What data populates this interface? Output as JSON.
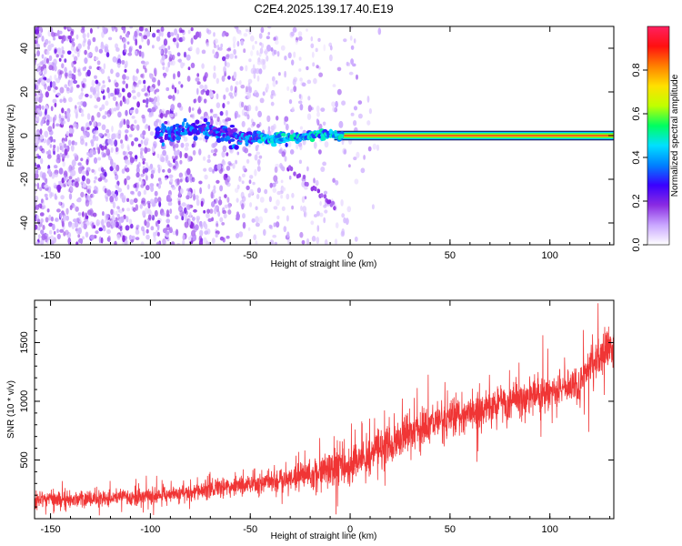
{
  "title": "C2E4.2025.139.17.40.E19",
  "chart_data": [
    {
      "type": "heatmap",
      "xlabel": "Height of straight line (km)",
      "ylabel": "Frequency (Hz)",
      "xlim": [
        -158,
        132
      ],
      "ylim": [
        -50,
        50
      ],
      "xticks": [
        -150,
        -100,
        -50,
        0,
        50,
        100
      ],
      "yticks": [
        -40,
        -20,
        0,
        20,
        40
      ],
      "colorbar": {
        "label": "Normalized spectral amplitude",
        "range": [
          0,
          1
        ],
        "ticks": [
          0.0,
          0.2,
          0.4,
          0.6,
          0.8
        ],
        "colors": [
          "#ffffff",
          "#c9a6ff",
          "#8a2be2",
          "#3a00ff",
          "#0080ff",
          "#00e0ff",
          "#00ff60",
          "#c0ff00",
          "#ffe000",
          "#ff8000",
          "#ff1010",
          "#ff2060"
        ]
      },
      "features": [
        {
          "name": "scatter noise",
          "x_range": [
            -158,
            15
          ],
          "freq_range": [
            -50,
            50
          ],
          "amplitude": 0.05
        },
        {
          "name": "zero-frequency line",
          "x_range": [
            -8,
            132
          ],
          "freq": 0,
          "amplitude": 1.0
        },
        {
          "name": "main trace",
          "points": [
            [
              -95,
              1
            ],
            [
              -80,
              3
            ],
            [
              -70,
              2
            ],
            [
              -60,
              0
            ],
            [
              -50,
              -1
            ],
            [
              -40,
              -1
            ],
            [
              -30,
              -1
            ],
            [
              -20,
              0
            ],
            [
              -10,
              1
            ],
            [
              -5,
              0
            ]
          ],
          "amplitude": 0.35
        },
        {
          "name": "descending branch",
          "points": [
            [
              -30,
              -15
            ],
            [
              -25,
              -18
            ],
            [
              -20,
              -22
            ],
            [
              -10,
              -31
            ],
            [
              -7,
              -33
            ]
          ],
          "amplitude": 0.15
        }
      ]
    },
    {
      "type": "line",
      "xlabel": "Height of straight line (km)",
      "ylabel": "SNR (10 * v/v)",
      "xlim": [
        -158,
        132
      ],
      "ylim": [
        0,
        1860
      ],
      "xticks": [
        -150,
        -100,
        -50,
        0,
        50,
        100
      ],
      "yticks": [
        500,
        1000,
        1500
      ],
      "color": "#f03535",
      "mean_curve": [
        [
          -158,
          160
        ],
        [
          -140,
          165
        ],
        [
          -120,
          170
        ],
        [
          -100,
          190
        ],
        [
          -80,
          230
        ],
        [
          -60,
          270
        ],
        [
          -40,
          320
        ],
        [
          -20,
          380
        ],
        [
          0,
          470
        ],
        [
          20,
          640
        ],
        [
          40,
          800
        ],
        [
          60,
          900
        ],
        [
          80,
          1000
        ],
        [
          100,
          1080
        ],
        [
          110,
          1120
        ],
        [
          115,
          1150
        ],
        [
          120,
          1300
        ],
        [
          125,
          1380
        ],
        [
          132,
          1450
        ]
      ],
      "spread": [
        [
          -158,
          60
        ],
        [
          -60,
          80
        ],
        [
          -30,
          110
        ],
        [
          -10,
          150
        ],
        [
          0,
          170
        ],
        [
          20,
          160
        ],
        [
          60,
          150
        ],
        [
          100,
          150
        ],
        [
          132,
          160
        ]
      ],
      "samples": 2800
    }
  ]
}
